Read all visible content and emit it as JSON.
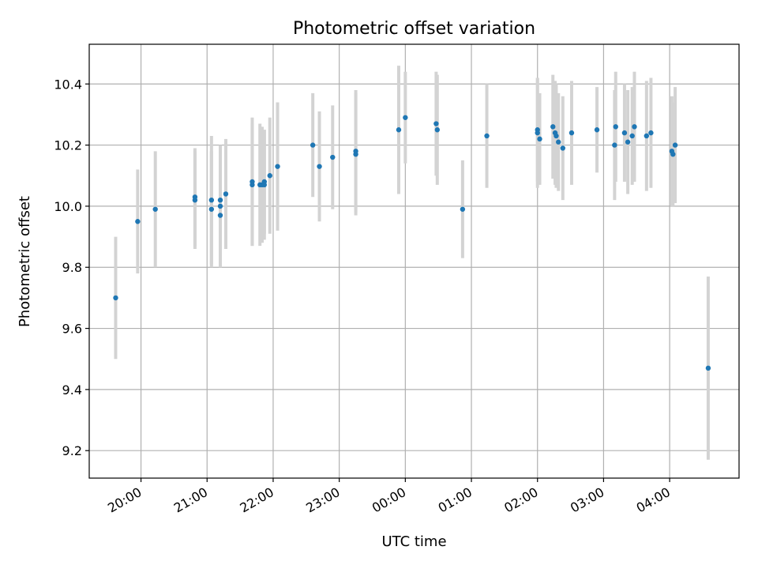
{
  "chart_data": {
    "type": "scatter",
    "title": "Photometric offset variation",
    "xlabel": "UTC time",
    "ylabel": "Photometric offset",
    "grid": true,
    "x_tick_labels": [
      "20:00",
      "21:00",
      "22:00",
      "23:00",
      "00:00",
      "01:00",
      "02:00",
      "03:00",
      "04:00"
    ],
    "y_tick_labels": [
      "9.2",
      "9.4",
      "9.6",
      "9.8",
      "10.0",
      "10.2",
      "10.4"
    ],
    "ylim": [
      9.11,
      10.53
    ],
    "xlim": [
      "19:13",
      "05:03"
    ],
    "colors": {
      "point": "#1f77b4",
      "errorbar": "#d3d3d3",
      "grid": "#b0b0b0"
    },
    "series": [
      {
        "x": [
          "19:37",
          "19:57",
          "20:13",
          "20:49",
          "20:49",
          "21:04",
          "21:04",
          "21:12",
          "21:12",
          "21:12",
          "21:17",
          "21:41",
          "21:41",
          "21:48",
          "21:50",
          "21:52",
          "21:52",
          "21:57",
          "22:04",
          "22:36",
          "22:42",
          "22:54",
          "23:15",
          "23:15",
          "23:54",
          "24:00",
          "24:28",
          "24:29",
          "24:52",
          "25:14",
          "26:00",
          "26:00",
          "26:02",
          "26:14",
          "26:16",
          "26:17",
          "26:19",
          "26:23",
          "26:31",
          "26:54",
          "27:10",
          "27:11",
          "27:19",
          "27:22",
          "27:26",
          "27:28",
          "27:39",
          "27:43",
          "28:02",
          "28:03",
          "28:05",
          "28:35"
        ],
        "y": [
          9.7,
          9.95,
          9.99,
          10.02,
          10.03,
          10.02,
          9.99,
          10.02,
          10.0,
          9.97,
          10.04,
          10.08,
          10.07,
          10.07,
          10.07,
          10.08,
          10.07,
          10.1,
          10.13,
          10.2,
          10.13,
          10.16,
          10.17,
          10.18,
          10.25,
          10.29,
          10.27,
          10.25,
          9.99,
          10.23,
          10.24,
          10.25,
          10.22,
          10.26,
          10.24,
          10.23,
          10.21,
          10.19,
          10.24,
          10.25,
          10.2,
          10.26,
          10.24,
          10.21,
          10.23,
          10.26,
          10.23,
          10.24,
          10.18,
          10.17,
          10.2,
          9.47
        ],
        "yerr": [
          0.2,
          0.17,
          0.19,
          0.16,
          0.16,
          0.21,
          0.19,
          0.18,
          0.2,
          0.17,
          0.18,
          0.21,
          0.2,
          0.2,
          0.19,
          0.17,
          0.18,
          0.19,
          0.21,
          0.17,
          0.18,
          0.17,
          0.2,
          0.2,
          0.21,
          0.15,
          0.17,
          0.18,
          0.16,
          0.17,
          0.18,
          0.17,
          0.15,
          0.17,
          0.17,
          0.17,
          0.16,
          0.17,
          0.17,
          0.14,
          0.18,
          0.18,
          0.16,
          0.17,
          0.16,
          0.18,
          0.18,
          0.18,
          0.18,
          0.17,
          0.19,
          0.3
        ]
      }
    ]
  }
}
